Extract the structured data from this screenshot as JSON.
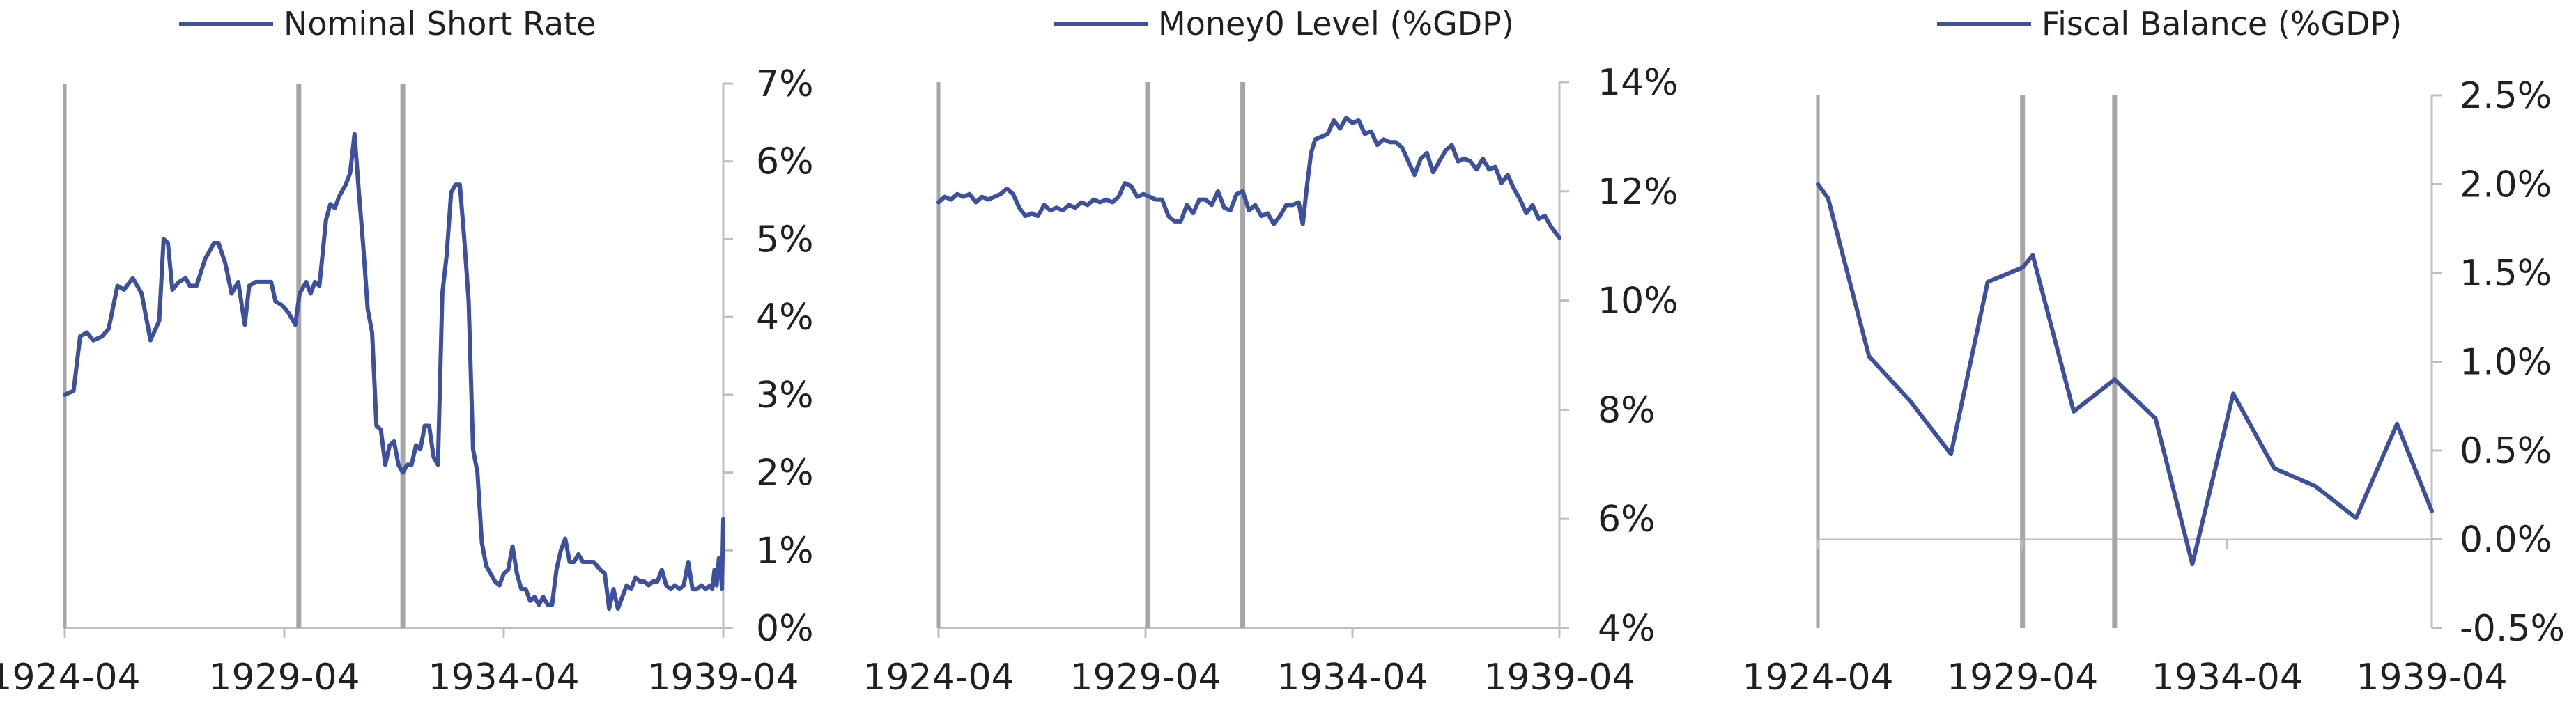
{
  "chart_data": [
    {
      "type": "line",
      "legend": "Nominal Short Rate",
      "legend_placement": "top-center",
      "y_axis_side": "right",
      "ylim": [
        0,
        7
      ],
      "y_ticks": [
        "0%",
        "1%",
        "2%",
        "3%",
        "4%",
        "5%",
        "6%",
        "7%"
      ],
      "x_ticks": [
        "1924-04",
        "1929-04",
        "1934-04",
        "1939-04"
      ],
      "x_range": [
        1924.25,
        1939.25
      ],
      "vlines": [
        1929.58,
        1931.95
      ],
      "color": "#3d4f9f",
      "series": [
        {
          "values": [
            [
              1924.25,
              3.0
            ],
            [
              1924.45,
              3.05
            ],
            [
              1924.6,
              3.75
            ],
            [
              1924.75,
              3.8
            ],
            [
              1924.9,
              3.7
            ],
            [
              1925.1,
              3.75
            ],
            [
              1925.25,
              3.85
            ],
            [
              1925.45,
              4.4
            ],
            [
              1925.6,
              4.35
            ],
            [
              1925.8,
              4.5
            ],
            [
              1926.0,
              4.3
            ],
            [
              1926.2,
              3.7
            ],
            [
              1926.4,
              3.95
            ],
            [
              1926.5,
              5.0
            ],
            [
              1926.6,
              4.95
            ],
            [
              1926.7,
              4.35
            ],
            [
              1926.85,
              4.45
            ],
            [
              1927.0,
              4.5
            ],
            [
              1927.1,
              4.4
            ],
            [
              1927.25,
              4.4
            ],
            [
              1927.45,
              4.75
            ],
            [
              1927.65,
              4.95
            ],
            [
              1927.75,
              4.95
            ],
            [
              1927.9,
              4.7
            ],
            [
              1928.05,
              4.3
            ],
            [
              1928.2,
              4.45
            ],
            [
              1928.35,
              3.9
            ],
            [
              1928.45,
              4.4
            ],
            [
              1928.6,
              4.45
            ],
            [
              1928.8,
              4.45
            ],
            [
              1928.95,
              4.45
            ],
            [
              1929.05,
              4.2
            ],
            [
              1929.2,
              4.15
            ],
            [
              1929.35,
              4.05
            ],
            [
              1929.5,
              3.9
            ],
            [
              1929.6,
              4.3
            ],
            [
              1929.75,
              4.45
            ],
            [
              1929.85,
              4.3
            ],
            [
              1929.95,
              4.45
            ],
            [
              1930.05,
              4.4
            ],
            [
              1930.2,
              5.25
            ],
            [
              1930.3,
              5.45
            ],
            [
              1930.4,
              5.4
            ],
            [
              1930.5,
              5.55
            ],
            [
              1930.65,
              5.7
            ],
            [
              1930.75,
              5.85
            ],
            [
              1930.85,
              6.35
            ],
            [
              1930.95,
              5.6
            ],
            [
              1931.05,
              4.9
            ],
            [
              1931.15,
              4.1
            ],
            [
              1931.25,
              3.8
            ],
            [
              1931.35,
              2.6
            ],
            [
              1931.45,
              2.55
            ],
            [
              1931.55,
              2.1
            ],
            [
              1931.65,
              2.35
            ],
            [
              1931.75,
              2.4
            ],
            [
              1931.85,
              2.1
            ],
            [
              1931.95,
              2.0
            ],
            [
              1932.05,
              2.1
            ],
            [
              1932.15,
              2.1
            ],
            [
              1932.25,
              2.35
            ],
            [
              1932.35,
              2.3
            ],
            [
              1932.45,
              2.6
            ],
            [
              1932.55,
              2.6
            ],
            [
              1932.65,
              2.2
            ],
            [
              1932.75,
              2.1
            ],
            [
              1932.85,
              4.3
            ],
            [
              1932.95,
              4.8
            ],
            [
              1933.05,
              5.6
            ],
            [
              1933.15,
              5.7
            ],
            [
              1933.25,
              5.7
            ],
            [
              1933.35,
              5.0
            ],
            [
              1933.45,
              4.2
            ],
            [
              1933.55,
              2.3
            ],
            [
              1933.65,
              2.0
            ],
            [
              1933.75,
              1.1
            ],
            [
              1933.85,
              0.8
            ],
            [
              1933.95,
              0.7
            ],
            [
              1934.05,
              0.6
            ],
            [
              1934.15,
              0.55
            ],
            [
              1934.25,
              0.7
            ],
            [
              1934.35,
              0.75
            ],
            [
              1934.45,
              1.05
            ],
            [
              1934.55,
              0.7
            ],
            [
              1934.65,
              0.5
            ],
            [
              1934.75,
              0.5
            ],
            [
              1934.85,
              0.35
            ],
            [
              1934.95,
              0.4
            ],
            [
              1935.05,
              0.3
            ],
            [
              1935.15,
              0.4
            ],
            [
              1935.25,
              0.3
            ],
            [
              1935.35,
              0.3
            ],
            [
              1935.45,
              0.75
            ],
            [
              1935.55,
              1.0
            ],
            [
              1935.65,
              1.15
            ],
            [
              1935.75,
              0.85
            ],
            [
              1935.85,
              0.85
            ],
            [
              1935.95,
              0.95
            ],
            [
              1936.05,
              0.85
            ],
            [
              1936.15,
              0.85
            ],
            [
              1936.3,
              0.85
            ],
            [
              1936.45,
              0.75
            ],
            [
              1936.55,
              0.7
            ],
            [
              1936.65,
              0.25
            ],
            [
              1936.75,
              0.5
            ],
            [
              1936.85,
              0.25
            ],
            [
              1936.95,
              0.4
            ],
            [
              1937.05,
              0.55
            ],
            [
              1937.15,
              0.5
            ],
            [
              1937.25,
              0.65
            ],
            [
              1937.35,
              0.6
            ],
            [
              1937.45,
              0.6
            ],
            [
              1937.55,
              0.55
            ],
            [
              1937.65,
              0.6
            ],
            [
              1937.75,
              0.6
            ],
            [
              1937.85,
              0.75
            ],
            [
              1937.95,
              0.55
            ],
            [
              1938.05,
              0.5
            ],
            [
              1938.15,
              0.55
            ],
            [
              1938.25,
              0.5
            ],
            [
              1938.35,
              0.55
            ],
            [
              1938.45,
              0.85
            ],
            [
              1938.55,
              0.5
            ],
            [
              1938.65,
              0.5
            ],
            [
              1938.75,
              0.55
            ],
            [
              1938.85,
              0.5
            ],
            [
              1938.95,
              0.55
            ],
            [
              1939.0,
              0.5
            ],
            [
              1939.05,
              0.75
            ],
            [
              1939.1,
              0.55
            ],
            [
              1939.15,
              0.9
            ],
            [
              1939.2,
              0.7
            ],
            [
              1939.22,
              0.5
            ],
            [
              1939.25,
              1.4
            ]
          ]
        }
      ]
    },
    {
      "type": "line",
      "legend": "Money0 Level (%GDP)",
      "legend_placement": "top-center",
      "y_axis_side": "right",
      "ylim": [
        4,
        14
      ],
      "y_ticks": [
        "4%",
        "6%",
        "8%",
        "10%",
        "12%",
        "14%"
      ],
      "x_ticks": [
        "1924-04",
        "1929-04",
        "1934-04",
        "1939-04"
      ],
      "x_range": [
        1924.25,
        1939.25
      ],
      "vlines": [
        1929.3,
        1931.6
      ],
      "color": "#3d4f9f",
      "series": [
        {
          "values": [
            [
              1924.25,
              11.8
            ],
            [
              1924.4,
              11.9
            ],
            [
              1924.55,
              11.85
            ],
            [
              1924.7,
              11.95
            ],
            [
              1924.85,
              11.9
            ],
            [
              1925.0,
              11.95
            ],
            [
              1925.15,
              11.8
            ],
            [
              1925.3,
              11.9
            ],
            [
              1925.45,
              11.85
            ],
            [
              1925.6,
              11.9
            ],
            [
              1925.75,
              11.95
            ],
            [
              1925.9,
              12.05
            ],
            [
              1926.05,
              11.95
            ],
            [
              1926.2,
              11.7
            ],
            [
              1926.35,
              11.55
            ],
            [
              1926.5,
              11.6
            ],
            [
              1926.65,
              11.55
            ],
            [
              1926.8,
              11.75
            ],
            [
              1926.95,
              11.65
            ],
            [
              1927.1,
              11.7
            ],
            [
              1927.25,
              11.65
            ],
            [
              1927.4,
              11.75
            ],
            [
              1927.55,
              11.7
            ],
            [
              1927.7,
              11.8
            ],
            [
              1927.85,
              11.75
            ],
            [
              1928.0,
              11.85
            ],
            [
              1928.15,
              11.8
            ],
            [
              1928.3,
              11.85
            ],
            [
              1928.45,
              11.8
            ],
            [
              1928.6,
              11.9
            ],
            [
              1928.75,
              12.15
            ],
            [
              1928.9,
              12.1
            ],
            [
              1929.05,
              11.9
            ],
            [
              1929.2,
              11.95
            ],
            [
              1929.35,
              11.9
            ],
            [
              1929.5,
              11.85
            ],
            [
              1929.65,
              11.85
            ],
            [
              1929.8,
              11.55
            ],
            [
              1929.95,
              11.45
            ],
            [
              1930.1,
              11.45
            ],
            [
              1930.25,
              11.75
            ],
            [
              1930.4,
              11.6
            ],
            [
              1930.55,
              11.85
            ],
            [
              1930.7,
              11.85
            ],
            [
              1930.85,
              11.75
            ],
            [
              1931.0,
              12.0
            ],
            [
              1931.15,
              11.7
            ],
            [
              1931.3,
              11.65
            ],
            [
              1931.45,
              11.95
            ],
            [
              1931.6,
              12.0
            ],
            [
              1931.75,
              11.65
            ],
            [
              1931.9,
              11.75
            ],
            [
              1932.05,
              11.55
            ],
            [
              1932.2,
              11.6
            ],
            [
              1932.35,
              11.4
            ],
            [
              1932.5,
              11.55
            ],
            [
              1932.65,
              11.75
            ],
            [
              1932.8,
              11.75
            ],
            [
              1932.95,
              11.8
            ],
            [
              1933.05,
              11.4
            ],
            [
              1933.15,
              12.1
            ],
            [
              1933.25,
              12.7
            ],
            [
              1933.35,
              12.95
            ],
            [
              1933.5,
              13.0
            ],
            [
              1933.65,
              13.05
            ],
            [
              1933.8,
              13.3
            ],
            [
              1933.95,
              13.15
            ],
            [
              1934.1,
              13.35
            ],
            [
              1934.25,
              13.25
            ],
            [
              1934.4,
              13.3
            ],
            [
              1934.55,
              13.05
            ],
            [
              1934.7,
              13.1
            ],
            [
              1934.85,
              12.85
            ],
            [
              1935.0,
              12.95
            ],
            [
              1935.15,
              12.9
            ],
            [
              1935.3,
              12.9
            ],
            [
              1935.45,
              12.8
            ],
            [
              1935.6,
              12.55
            ],
            [
              1935.75,
              12.3
            ],
            [
              1935.9,
              12.6
            ],
            [
              1936.05,
              12.7
            ],
            [
              1936.2,
              12.35
            ],
            [
              1936.35,
              12.55
            ],
            [
              1936.5,
              12.75
            ],
            [
              1936.65,
              12.85
            ],
            [
              1936.8,
              12.55
            ],
            [
              1936.95,
              12.6
            ],
            [
              1937.1,
              12.55
            ],
            [
              1937.25,
              12.4
            ],
            [
              1937.4,
              12.6
            ],
            [
              1937.55,
              12.4
            ],
            [
              1937.7,
              12.45
            ],
            [
              1937.85,
              12.15
            ],
            [
              1938.0,
              12.3
            ],
            [
              1938.15,
              12.05
            ],
            [
              1938.3,
              11.85
            ],
            [
              1938.45,
              11.6
            ],
            [
              1938.6,
              11.75
            ],
            [
              1938.75,
              11.5
            ],
            [
              1938.9,
              11.55
            ],
            [
              1939.05,
              11.35
            ],
            [
              1939.25,
              11.15
            ]
          ]
        }
      ]
    },
    {
      "type": "line",
      "legend": "Fiscal Balance (%GDP)",
      "legend_placement": "top-center",
      "y_axis_side": "right",
      "ylim": [
        -0.5,
        2.5
      ],
      "y_ticks": [
        "-0.5%",
        "0.0%",
        "0.5%",
        "1.0%",
        "1.5%",
        "2.0%",
        "2.5%"
      ],
      "x_ticks": [
        "1924-04",
        "1929-04",
        "1934-04",
        "1939-04"
      ],
      "x_range": [
        1924.25,
        1939.25
      ],
      "vlines": [
        1929.25,
        1931.5
      ],
      "color": "#3d4f9f",
      "series": [
        {
          "values": [
            [
              1924.25,
              2.0
            ],
            [
              1924.5,
              1.92
            ],
            [
              1925.5,
              1.03
            ],
            [
              1926.5,
              0.78
            ],
            [
              1927.5,
              0.48
            ],
            [
              1928.4,
              1.45
            ],
            [
              1929.25,
              1.53
            ],
            [
              1929.5,
              1.6
            ],
            [
              1930.5,
              0.72
            ],
            [
              1931.5,
              0.9
            ],
            [
              1932.5,
              0.68
            ],
            [
              1933.4,
              -0.14
            ],
            [
              1934.4,
              0.82
            ],
            [
              1935.4,
              0.4
            ],
            [
              1936.4,
              0.3
            ],
            [
              1937.4,
              0.12
            ],
            [
              1938.4,
              0.65
            ],
            [
              1939.25,
              0.16
            ]
          ]
        }
      ]
    }
  ]
}
